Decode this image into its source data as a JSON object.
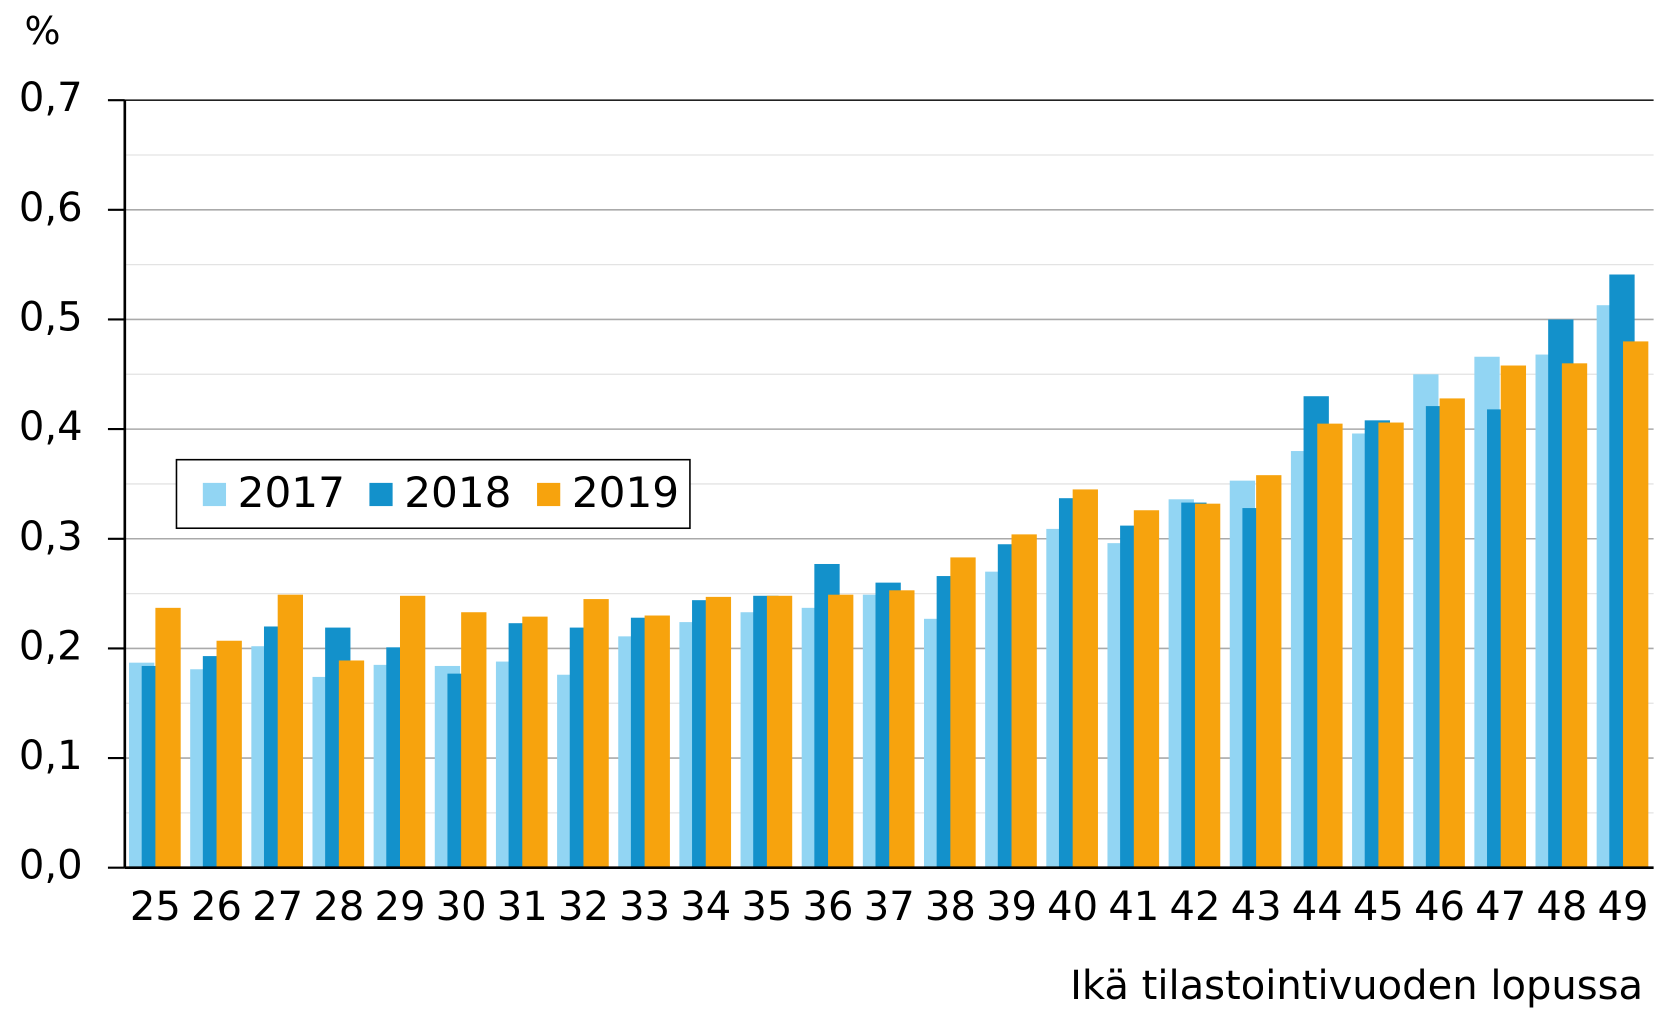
{
  "chart_data": {
    "type": "bar",
    "y_unit_label": "%",
    "x_label": "Ikä tilastointivuoden lopussa",
    "categories": [
      "25",
      "26",
      "27",
      "28",
      "29",
      "30",
      "31",
      "32",
      "33",
      "34",
      "35",
      "36",
      "37",
      "38",
      "39",
      "40",
      "41",
      "42",
      "43",
      "44",
      "45",
      "46",
      "47",
      "48",
      "49"
    ],
    "series": [
      {
        "name": "2017",
        "color": "#92d5f3",
        "values": [
          0.187,
          0.181,
          0.202,
          0.174,
          0.185,
          0.184,
          0.188,
          0.176,
          0.211,
          0.224,
          0.233,
          0.237,
          0.249,
          0.227,
          0.27,
          0.309,
          0.296,
          0.336,
          0.353,
          0.38,
          0.396,
          0.45,
          0.466,
          0.468,
          0.513
        ]
      },
      {
        "name": "2018",
        "color": "#1391cb",
        "values": [
          0.184,
          0.193,
          0.22,
          0.219,
          0.201,
          0.177,
          0.223,
          0.219,
          0.228,
          0.244,
          0.248,
          0.277,
          0.26,
          0.266,
          0.295,
          0.337,
          0.312,
          0.333,
          0.328,
          0.43,
          0.408,
          0.421,
          0.418,
          0.5,
          0.541
        ]
      },
      {
        "name": "2019",
        "color": "#f7a30d",
        "values": [
          0.237,
          0.207,
          0.249,
          0.189,
          0.248,
          0.233,
          0.229,
          0.245,
          0.23,
          0.247,
          0.248,
          0.249,
          0.253,
          0.283,
          0.304,
          0.345,
          0.326,
          0.332,
          0.358,
          0.405,
          0.406,
          0.428,
          0.458,
          0.46,
          0.48
        ]
      }
    ],
    "ylim": [
      0,
      0.7
    ],
    "yticks": [
      {
        "value": 0,
        "label": "0,0"
      },
      {
        "value": 0.1,
        "label": "0,1"
      },
      {
        "value": 0.2,
        "label": "0,2"
      },
      {
        "value": 0.3,
        "label": "0,3"
      },
      {
        "value": 0.4,
        "label": "0,4"
      },
      {
        "value": 0.5,
        "label": "0,5"
      },
      {
        "value": 0.6,
        "label": "0,6"
      },
      {
        "value": 0.7,
        "label": "0,7"
      }
    ],
    "minor_yticks": [
      0.05,
      0.15,
      0.25,
      0.35,
      0.45,
      0.55,
      0.65
    ],
    "grid": true,
    "legend": "left"
  }
}
